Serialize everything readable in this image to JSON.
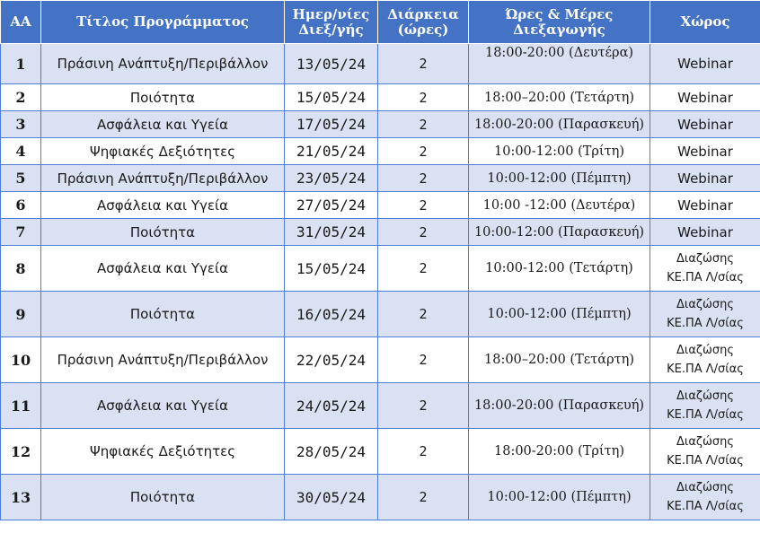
{
  "table": {
    "headers": {
      "aa": "ΑΑ",
      "title": "Τίτλος Προγράμματος",
      "dates_line1": "Ημερ/νίες",
      "dates_line2": "Διεξ/γής",
      "duration_line1": "Διάρκεια",
      "duration_line2": "(ώρες)",
      "schedule_line1": "Ώρες & Μέρες",
      "schedule_line2": "Διεξαγωγής",
      "venue": "Χώρος"
    },
    "rows": [
      {
        "aa": "1",
        "title": "Πράσινη Ανάπτυξη/Περιβάλλον",
        "date": "13/05/24",
        "duration": "2",
        "time": "18:00-20:00 (Δευτέρα)",
        "venue_line1": "Webinar",
        "venue_line2": ""
      },
      {
        "aa": "2",
        "title": "Ποιότητα",
        "date": "15/05/24",
        "duration": "2",
        "time": "18:00–20:00 (Τετάρτη)",
        "venue_line1": "Webinar",
        "venue_line2": ""
      },
      {
        "aa": "3",
        "title": "Ασφάλεια και Υγεία",
        "date": "17/05/24",
        "duration": "2",
        "time": "18:00-20:00 (Παρασκευή)",
        "venue_line1": "Webinar",
        "venue_line2": ""
      },
      {
        "aa": "4",
        "title": "Ψηφιακές Δεξιότητες",
        "date": "21/05/24",
        "duration": "2",
        "time": "10:00-12:00 (Τρίτη)",
        "venue_line1": "Webinar",
        "venue_line2": ""
      },
      {
        "aa": "5",
        "title": "Πράσινη Ανάπτυξη/Περιβάλλον",
        "date": "23/05/24",
        "duration": "2",
        "time": "10:00-12:00 (Πέμπτη)",
        "venue_line1": "Webinar",
        "venue_line2": ""
      },
      {
        "aa": "6",
        "title": "Ασφάλεια και Υγεία",
        "date": "27/05/24",
        "duration": "2",
        "time": "10:00 -12:00 (Δευτέρα)",
        "venue_line1": "Webinar",
        "venue_line2": ""
      },
      {
        "aa": "7",
        "title": "Ποιότητα",
        "date": "31/05/24",
        "duration": "2",
        "time": "10:00-12:00 (Παρασκευή)",
        "venue_line1": "Webinar",
        "venue_line2": ""
      },
      {
        "aa": "8",
        "title": "Ασφάλεια και Υγεία",
        "date": "15/05/24",
        "duration": "2",
        "time": "10:00-12:00 (Τετάρτη)",
        "venue_line1": "Διαζώσης",
        "venue_line2": "ΚΕ.ΠΑ Λ/σίας"
      },
      {
        "aa": "9",
        "title": "Ποιότητα",
        "date": "16/05/24",
        "duration": "2",
        "time": "10:00-12:00 (Πέμπτη)",
        "venue_line1": "Διαζώσης",
        "venue_line2": "ΚΕ.ΠΑ Λ/σίας"
      },
      {
        "aa": "10",
        "title": "Πράσινη Ανάπτυξη/Περιβάλλον",
        "date": "22/05/24",
        "duration": "2",
        "time": "18:00–20:00 (Τετάρτη)",
        "venue_line1": "Διαζώσης",
        "venue_line2": "ΚΕ.ΠΑ Λ/σίας"
      },
      {
        "aa": "11",
        "title": "Ασφάλεια και Υγεία",
        "date": "24/05/24",
        "duration": "2",
        "time": "18:00-20:00 (Παρασκευή)",
        "venue_line1": "Διαζώσης",
        "venue_line2": "ΚΕ.ΠΑ Λ/σίας"
      },
      {
        "aa": "12",
        "title": "Ψηφιακές Δεξιότητες",
        "date": "28/05/24",
        "duration": "2",
        "time": "18:00-20:00 (Τρίτη)",
        "venue_line1": "Διαζώσης",
        "venue_line2": "ΚΕ.ΠΑ Λ/σίας"
      },
      {
        "aa": "13",
        "title": "Ποιότητα",
        "date": "30/05/24",
        "duration": "2",
        "time": "10:00-12:00 (Πέμπτη)",
        "venue_line1": "Διαζώσης",
        "venue_line2": "ΚΕ.ΠΑ Λ/σίας"
      }
    ]
  },
  "colors": {
    "header_bg": "#4472c4",
    "header_text": "#ffffff",
    "band_row": "#d9e1f2",
    "plain_row": "#ffffff",
    "border": "#4f7ed6"
  }
}
